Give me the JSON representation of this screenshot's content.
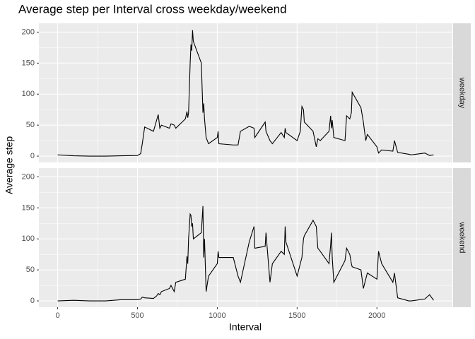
{
  "chart_data": {
    "type": "line",
    "title": "Average step per Interval cross weekday/weekend",
    "x_label": "Interval",
    "y_label": "Average step",
    "x": [
      0,
      100,
      200,
      300,
      400,
      500,
      520,
      530,
      545,
      600,
      620,
      630,
      640,
      650,
      700,
      710,
      730,
      740,
      800,
      810,
      815,
      820,
      830,
      835,
      840,
      845,
      850,
      900,
      910,
      915,
      920,
      930,
      945,
      1000,
      1005,
      1010,
      1100,
      1130,
      1145,
      1200,
      1230,
      1235,
      1300,
      1305,
      1330,
      1345,
      1400,
      1420,
      1425,
      1430,
      1500,
      1520,
      1530,
      1540,
      1545,
      1600,
      1620,
      1630,
      1645,
      1700,
      1710,
      1715,
      1720,
      1730,
      1800,
      1810,
      1830,
      1840,
      1845,
      1900,
      1915,
      1930,
      1940,
      2000,
      2010,
      2030,
      2100,
      2110,
      2130,
      2200,
      2215,
      2300,
      2330,
      2355
    ],
    "series": [
      {
        "name": "weekday",
        "color": "#000000",
        "values": [
          2,
          0.5,
          0,
          0,
          0.5,
          1,
          4,
          20,
          47,
          40,
          58,
          67,
          45,
          50,
          45,
          52,
          50,
          45,
          60,
          72,
          62,
          70,
          150,
          180,
          170,
          203,
          185,
          150,
          70,
          85,
          60,
          30,
          20,
          30,
          40,
          20,
          18,
          18,
          40,
          48,
          45,
          30,
          55,
          40,
          25,
          20,
          38,
          30,
          45,
          38,
          25,
          40,
          80,
          75,
          55,
          40,
          15,
          28,
          25,
          40,
          65,
          45,
          58,
          30,
          25,
          65,
          60,
          70,
          103,
          78,
          55,
          25,
          35,
          15,
          5,
          10,
          8,
          25,
          6,
          3,
          2,
          5,
          1,
          2
        ]
      },
      {
        "name": "weekend",
        "color": "#000000",
        "values": [
          0,
          1,
          0,
          0,
          2,
          2,
          3,
          6,
          5,
          4,
          8,
          12,
          10,
          15,
          20,
          25,
          15,
          30,
          35,
          72,
          60,
          100,
          140,
          138,
          120,
          125,
          100,
          110,
          153,
          70,
          100,
          15,
          40,
          60,
          80,
          70,
          70,
          40,
          30,
          95,
          120,
          85,
          88,
          110,
          30,
          60,
          80,
          75,
          120,
          95,
          40,
          60,
          70,
          100,
          105,
          130,
          120,
          85,
          80,
          60,
          90,
          110,
          70,
          30,
          65,
          85,
          75,
          60,
          55,
          50,
          20,
          35,
          45,
          35,
          80,
          60,
          30,
          45,
          5,
          0,
          0,
          3,
          10,
          1
        ]
      }
    ],
    "xlim": [
      -117.75,
      2472.75
    ],
    "xticks": [
      0,
      500,
      1000,
      1500,
      2000
    ],
    "minor_xticks": [
      250,
      750,
      1250,
      1750,
      2250
    ],
    "ylim": [
      -10.2,
      214.2
    ],
    "yticks": [
      0,
      50,
      100,
      150,
      200
    ],
    "minor_yticks": [
      25,
      75,
      125,
      175
    ],
    "grid": true
  }
}
